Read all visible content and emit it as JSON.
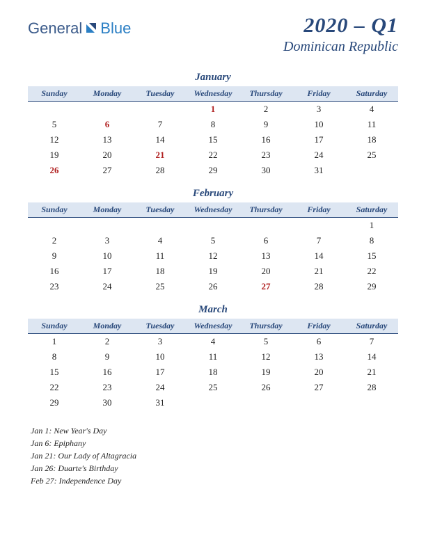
{
  "logo": {
    "text1": "General",
    "text2": "Blue"
  },
  "header": {
    "quarter": "2020 – Q1",
    "country": "Dominican Republic"
  },
  "dayHeaders": [
    "Sunday",
    "Monday",
    "Tuesday",
    "Wednesday",
    "Thursday",
    "Friday",
    "Saturday"
  ],
  "months": [
    {
      "name": "January",
      "weeks": [
        [
          "",
          "",
          "",
          {
            "d": "1",
            "h": true
          },
          "2",
          "3",
          "4"
        ],
        [
          "5",
          {
            "d": "6",
            "h": true
          },
          "7",
          "8",
          "9",
          "10",
          "11"
        ],
        [
          "12",
          "13",
          "14",
          "15",
          "16",
          "17",
          "18"
        ],
        [
          "19",
          "20",
          {
            "d": "21",
            "h": true
          },
          "22",
          "23",
          "24",
          "25"
        ],
        [
          {
            "d": "26",
            "h": true
          },
          "27",
          "28",
          "29",
          "30",
          "31",
          ""
        ]
      ]
    },
    {
      "name": "February",
      "weeks": [
        [
          "",
          "",
          "",
          "",
          "",
          "",
          "1"
        ],
        [
          "2",
          "3",
          "4",
          "5",
          "6",
          "7",
          "8"
        ],
        [
          "9",
          "10",
          "11",
          "12",
          "13",
          "14",
          "15"
        ],
        [
          "16",
          "17",
          "18",
          "19",
          "20",
          "21",
          "22"
        ],
        [
          "23",
          "24",
          "25",
          "26",
          {
            "d": "27",
            "h": true
          },
          "28",
          "29"
        ]
      ]
    },
    {
      "name": "March",
      "weeks": [
        [
          "1",
          "2",
          "3",
          "4",
          "5",
          "6",
          "7"
        ],
        [
          "8",
          "9",
          "10",
          "11",
          "12",
          "13",
          "14"
        ],
        [
          "15",
          "16",
          "17",
          "18",
          "19",
          "20",
          "21"
        ],
        [
          "22",
          "23",
          "24",
          "25",
          "26",
          "27",
          "28"
        ],
        [
          "29",
          "30",
          "31",
          "",
          "",
          "",
          ""
        ]
      ]
    }
  ],
  "holidays": [
    "Jan 1: New Year's Day",
    "Jan 6: Epiphany",
    "Jan 21: Our Lady of Altagracia",
    "Jan 26: Duarte's Birthday",
    "Feb 27: Independence Day"
  ],
  "colors": {
    "header_bg": "#dde6f2",
    "accent": "#28487a",
    "holiday": "#b02020"
  }
}
